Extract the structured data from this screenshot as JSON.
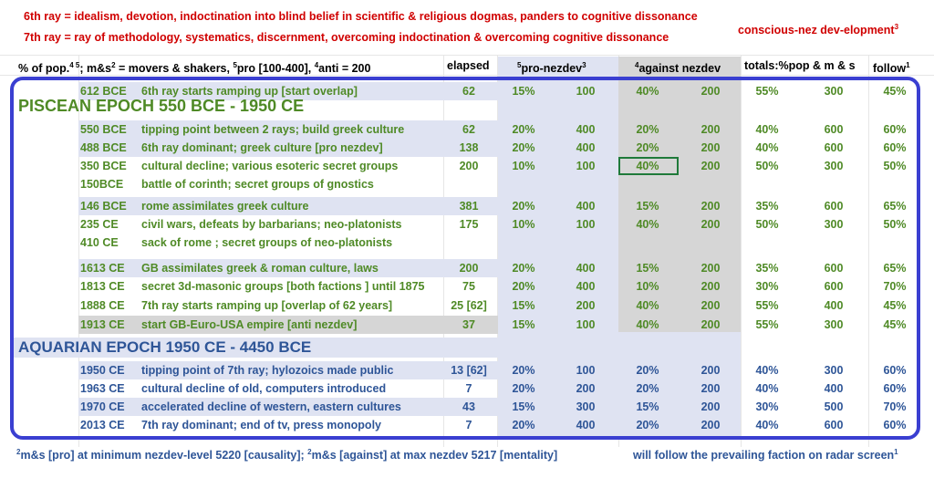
{
  "header": {
    "line1": "6th ray = idealism, devotion, indoctination into blind belief in scientific & religious  dogmas, panders to cognitive dissonance",
    "line2": "7th ray = ray of methodology, systematics, discernment, overcoming indoctination & overcoming cognitive dissonance",
    "logo": "conscious-nez dev-elopment",
    "logo_sup": "3"
  },
  "colhead": {
    "pop": "% of pop.",
    "pop_sup": "4 5",
    "mms_pre": "; m&s",
    "mms_sup": "2",
    "mms_text": " = movers & shakers, ",
    "pro_sup": "5",
    "pro_text": "pro [100-400], ",
    "anti_sup": "4",
    "anti_text": "anti = 200",
    "elapsed": "elapsed",
    "pronez_sup": "5",
    "pronez": "pro-nezdev",
    "pronez_sup2": "3",
    "against_sup": "4",
    "against": "against nezdev",
    "totals": "totals:%pop & m & s",
    "follow": "follow",
    "follow_sup": "1"
  },
  "epochs": {
    "piscean": "PISCEAN EPOCH 550 BCE - 1950 CE",
    "aquarian": "AQUARIAN EPOCH 1950 CE - 4450 BCE"
  },
  "rows": [
    {
      "date": "612 BCE",
      "desc": "6th ray starts ramping up [start overlap]",
      "el": "62",
      "pp": "15%",
      "pn": "100",
      "ap": "40%",
      "an": "200",
      "tp": "55%",
      "tm": "300",
      "fo": "45%"
    },
    {
      "date": "550 BCE",
      "desc": "tipping point between 2 rays; build greek culture",
      "el": "62",
      "pp": "20%",
      "pn": "400",
      "ap": "20%",
      "an": "200",
      "tp": "40%",
      "tm": "600",
      "fo": "60%"
    },
    {
      "date": "488 BCE",
      "desc": "6th ray dominant; greek culture [pro nezdev]",
      "el": "138",
      "pp": "20%",
      "pn": "400",
      "ap": "20%",
      "an": "200",
      "tp": "40%",
      "tm": "600",
      "fo": "60%"
    },
    {
      "date": "350 BCE",
      "desc": "cultural decline; various esoteric secret groups",
      "el": "200",
      "pp": "10%",
      "pn": "100",
      "ap": "40%",
      "an": "200",
      "tp": "50%",
      "tm": "300",
      "fo": "50%"
    },
    {
      "date": "150BCE",
      "desc": "battle of corinth; secret groups of gnostics",
      "el": "",
      "pp": "",
      "pn": "",
      "ap": "",
      "an": "",
      "tp": "",
      "tm": "",
      "fo": ""
    },
    {
      "date": "146 BCE",
      "desc": "rome assimilates greek culture",
      "el": "381",
      "pp": "20%",
      "pn": "400",
      "ap": "15%",
      "an": "200",
      "tp": "35%",
      "tm": "600",
      "fo": "65%"
    },
    {
      "date": "235 CE",
      "desc": "civil wars, defeats by barbarians; neo-platonists",
      "el": "175",
      "pp": "10%",
      "pn": "100",
      "ap": "40%",
      "an": "200",
      "tp": "50%",
      "tm": "300",
      "fo": "50%"
    },
    {
      "date": "410 CE",
      "desc": "sack of rome ; secret groups of neo-platonists",
      "el": "",
      "pp": "",
      "pn": "",
      "ap": "",
      "an": "",
      "tp": "",
      "tm": "",
      "fo": ""
    },
    {
      "date": "1613 CE",
      "desc": "GB assimilates greek & roman culture, laws",
      "el": "200",
      "pp": "20%",
      "pn": "400",
      "ap": "15%",
      "an": "200",
      "tp": "35%",
      "tm": "600",
      "fo": "65%"
    },
    {
      "date": "1813 CE",
      "desc": "secret 3d-masonic groups [both factions ] until 1875",
      "el": "75",
      "pp": "20%",
      "pn": "400",
      "ap": "10%",
      "an": "200",
      "tp": "30%",
      "tm": "600",
      "fo": "70%"
    },
    {
      "date": "1888 CE",
      "desc": "7th ray starts ramping up [overlap of 62 years]",
      "el": "25 [62]",
      "pp": "15%",
      "pn": "200",
      "ap": "40%",
      "an": "200",
      "tp": "55%",
      "tm": "400",
      "fo": "45%"
    },
    {
      "date": "1913 CE",
      "desc": "start GB-Euro-USA empire [anti nezdev]",
      "el": "37",
      "pp": "15%",
      "pn": "100",
      "ap": "40%",
      "an": "200",
      "tp": "55%",
      "tm": "300",
      "fo": "45%"
    },
    {
      "date": "1950 CE",
      "desc": "tipping point of 7th ray; hylozoics made public",
      "el": "13 [62]",
      "pp": "20%",
      "pn": "100",
      "ap": "20%",
      "an": "200",
      "tp": "40%",
      "tm": "300",
      "fo": "60%"
    },
    {
      "date": "1963 CE",
      "desc": "cultural decline of old, computers introduced",
      "el": "7",
      "pp": "20%",
      "pn": "200",
      "ap": "20%",
      "an": "200",
      "tp": "40%",
      "tm": "400",
      "fo": "60%"
    },
    {
      "date": "1970 CE",
      "desc": "accelerated decline of western, eastern cultures",
      "el": "43",
      "pp": "15%",
      "pn": "300",
      "ap": "15%",
      "an": "200",
      "tp": "30%",
      "tm": "500",
      "fo": "70%"
    },
    {
      "date": "2013 CE",
      "desc": "7th ray dominant; end of tv, press monopoly",
      "el": "7",
      "pp": "20%",
      "pn": "400",
      "ap": "20%",
      "an": "200",
      "tp": "40%",
      "tm": "600",
      "fo": "60%"
    }
  ],
  "footer": {
    "left_sup1": "2",
    "left_text1": "m&s [pro] at minimum nezdev-level 5220 [causality];  ",
    "left_sup2": "2",
    "left_text2": "m&s [against] at max nezdev 5217 [mentality]",
    "right_text": "will follow the prevailing faction on radar screen",
    "right_sup": "1"
  },
  "colors": {
    "red": "#d00000",
    "green": "#4f8a26",
    "blue": "#2e5597",
    "frame": "#3a3fd1",
    "lavender": "#dfe3f2",
    "grey": "#d6d6d6"
  }
}
